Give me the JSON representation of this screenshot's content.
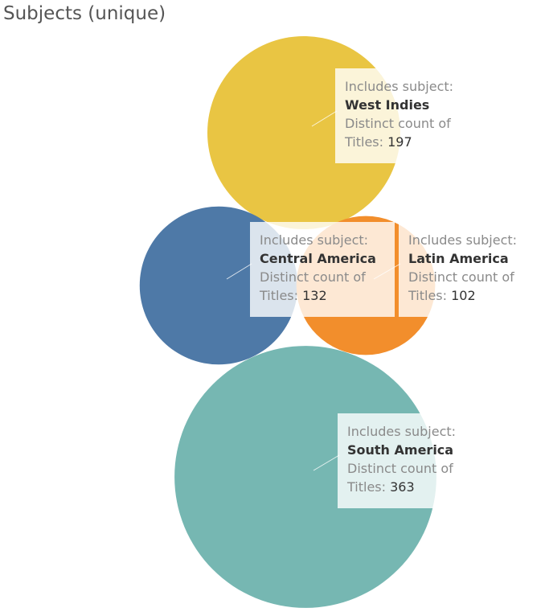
{
  "title": "Subjects (unique)",
  "tooltip": {
    "subject_label": "Includes subject:",
    "measure_label_line1": "Distinct count of",
    "measure_label_line2": "Titles:"
  },
  "colors": {
    "West Indies": "#e9c543",
    "Central America": "#4e79a7",
    "Latin America": "#f28e2c",
    "South America": "#76b7b2"
  },
  "chart_data": {
    "type": "bubble",
    "title": "Subjects (unique)",
    "measure": "Distinct count of Titles",
    "dimension": "Includes subject",
    "points": [
      {
        "subject": "West Indies",
        "value": 197
      },
      {
        "subject": "Central America",
        "value": 132
      },
      {
        "subject": "Latin America",
        "value": 102
      },
      {
        "subject": "South America",
        "value": 363
      }
    ]
  }
}
